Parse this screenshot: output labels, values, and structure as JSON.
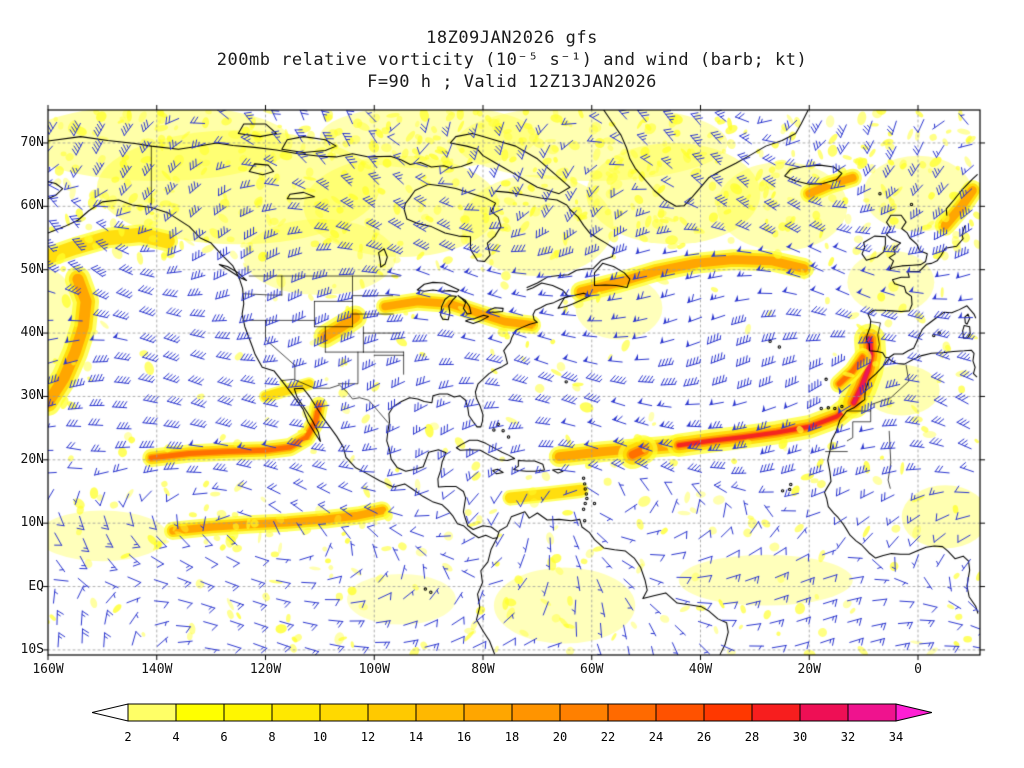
{
  "title": {
    "line1": "18Z09JAN2026 gfs",
    "line2": "200mb relative vorticity (10⁻⁵ s⁻¹) and wind (barb; kt)",
    "line3": "F=90 h ; Valid 12Z13JAN2026"
  },
  "axes": {
    "lat_ticks": [
      "70N",
      "60N",
      "50N",
      "40N",
      "30N",
      "20N",
      "10N",
      "EQ",
      "10S"
    ],
    "lat_values": [
      70,
      60,
      50,
      40,
      30,
      20,
      10,
      0,
      -10
    ],
    "lon_ticks": [
      "160W",
      "140W",
      "120W",
      "100W",
      "80W",
      "60W",
      "40W",
      "20W",
      "0"
    ],
    "lon_values": [
      -160,
      -140,
      -120,
      -100,
      -80,
      -60,
      -40,
      -20,
      0
    ]
  },
  "chart_data": {
    "type": "heatmap",
    "title": "200mb relative vorticity (10⁻⁵ s⁻¹) and wind (barb; kt)",
    "model_run": "18Z09JAN2026 gfs",
    "forecast": "F=90 h",
    "valid": "12Z13JAN2026",
    "units": "10⁻⁵ s⁻¹",
    "lon_range": [
      -160,
      11
    ],
    "lat_range": [
      -10.8,
      75.2
    ],
    "grid": "dashed 10-deg lat / 20-deg lon",
    "legend_position": "bottom colorbar",
    "colorbar_levels": [
      2,
      4,
      6,
      8,
      10,
      12,
      14,
      16,
      18,
      20,
      22,
      24,
      26,
      28,
      30,
      32,
      34
    ],
    "colorbar_colors": [
      "#ffff66",
      "#ffff00",
      "#fff600",
      "#ffe800",
      "#ffd900",
      "#ffc900",
      "#ffb800",
      "#ffa600",
      "#ff9400",
      "#ff8000",
      "#ff6a00",
      "#ff5200",
      "#ff3800",
      "#f71e1e",
      "#ee0f55",
      "#ef138e"
    ],
    "under_color": "#ffffff",
    "over_color": "#ff1fd4",
    "wind_barb_color": "#2a35cf",
    "vorticity_features": [
      {
        "name": "subtropical-jet-atlantic",
        "approx_path_lonlat": [
          [
            -65,
            21
          ],
          [
            -44,
            22.3
          ],
          [
            -30,
            23.8
          ],
          [
            -15,
            27
          ]
        ],
        "peak_value": 26
      },
      {
        "name": "nw-africa-iberia-max",
        "approx_path_lonlat": [
          [
            -11.8,
            29
          ],
          [
            -9.3,
            34
          ],
          [
            -8.9,
            39
          ]
        ],
        "peak_value": 30
      },
      {
        "name": "pacific-21n-streak",
        "approx_path_lonlat": [
          [
            -141,
            20.3
          ],
          [
            -120,
            21.5
          ],
          [
            -110.5,
            27
          ]
        ],
        "peak_value": 16
      },
      {
        "name": "pacific-10n-streak",
        "approx_path_lonlat": [
          [
            -137,
            8.8
          ],
          [
            -116,
            10.1
          ],
          [
            -98.5,
            12
          ]
        ],
        "peak_value": 13
      },
      {
        "name": "north-atlantic-50n-band",
        "approx_path_lonlat": [
          [
            -62,
            46.5
          ],
          [
            -41,
            51
          ],
          [
            -21,
            50.2
          ]
        ],
        "peak_value": 15
      },
      {
        "name": "us-rockies-max",
        "approx_path_lonlat": [
          [
            -109,
            39.5
          ],
          [
            -103.5,
            42.5
          ]
        ],
        "peak_value": 12
      },
      {
        "name": "great-lakes-new-england-band",
        "approx_path_lonlat": [
          [
            -98,
            44.2
          ],
          [
            -81,
            43.2
          ],
          [
            -71,
            41.3
          ]
        ],
        "peak_value": 12
      },
      {
        "name": "east-pacific-left-edge-arc",
        "approx_path_lonlat": [
          [
            -160,
            29
          ],
          [
            -153.5,
            41
          ],
          [
            -154.5,
            48.5
          ]
        ],
        "peak_value": 14
      },
      {
        "name": "mid-atlantic-blob",
        "approx_path_lonlat": [
          [
            -52.5,
            20.8
          ],
          [
            -50.5,
            21.6
          ]
        ],
        "peak_value": 18
      },
      {
        "name": "norway-coast-streak",
        "approx_path_lonlat": [
          [
            5,
            57
          ],
          [
            10,
            62.5
          ]
        ],
        "peak_value": 12
      }
    ]
  },
  "style": {
    "grid_color": "#9a9a9a",
    "coast_color": "#000000",
    "border_color": "#000000",
    "speckle_color": "#ffff2a",
    "wash_color": "#ffff3d",
    "frame_color": "#000000"
  }
}
